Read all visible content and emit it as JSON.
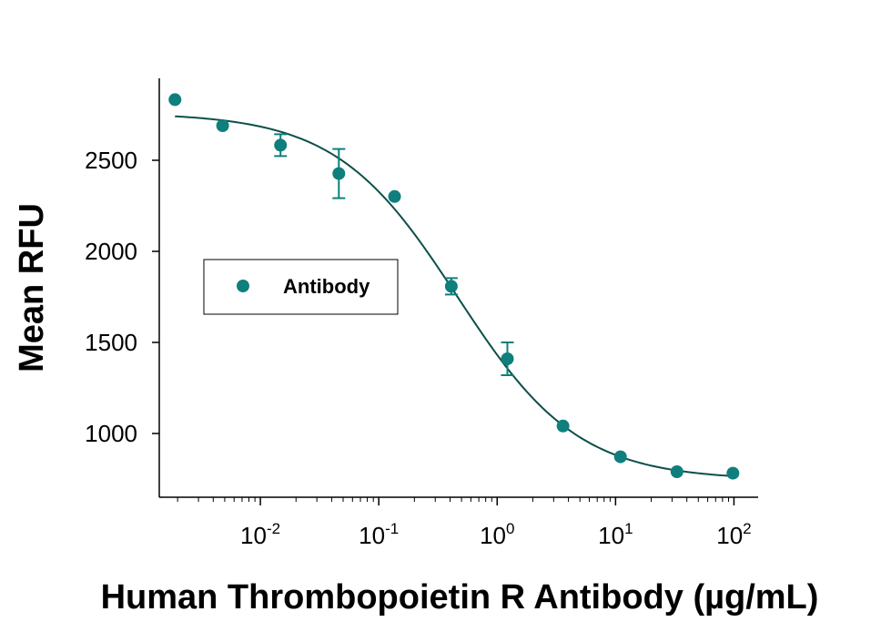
{
  "chart_data": {
    "type": "scatter",
    "title": "",
    "xlabel": "Human Thrombopoietin R Antibody (µg/mL)",
    "ylabel": "Mean RFU",
    "xscale": "log",
    "xlim": [
      0.0014,
      160
    ],
    "ylim": [
      650,
      2950
    ],
    "x_ticks": [
      {
        "value": 0.01,
        "base": "10",
        "exp": "-2"
      },
      {
        "value": 0.1,
        "base": "10",
        "exp": "-1"
      },
      {
        "value": 1,
        "base": "10",
        "exp": "0"
      },
      {
        "value": 10,
        "base": "10",
        "exp": "1"
      },
      {
        "value": 100,
        "base": "10",
        "exp": "2"
      }
    ],
    "y_ticks": [
      1000,
      1500,
      2000,
      2500
    ],
    "legend": {
      "label": "Antibody",
      "position": "center-left"
    },
    "color": "#0e7f7c",
    "curve_color": "#0b4f49",
    "series": [
      {
        "name": "Antibody",
        "points": [
          {
            "x": 0.0019,
            "y": 2833,
            "err": 0
          },
          {
            "x": 0.0048,
            "y": 2690,
            "err": 0
          },
          {
            "x": 0.0148,
            "y": 2583,
            "err": 60
          },
          {
            "x": 0.046,
            "y": 2427,
            "err": 135
          },
          {
            "x": 0.136,
            "y": 2301,
            "err": 0
          },
          {
            "x": 0.41,
            "y": 1808,
            "err": 45
          },
          {
            "x": 1.22,
            "y": 1410,
            "err": 90
          },
          {
            "x": 3.6,
            "y": 1041,
            "err": 0
          },
          {
            "x": 11,
            "y": 872,
            "err": 0
          },
          {
            "x": 33,
            "y": 790,
            "err": 0
          },
          {
            "x": 98,
            "y": 782,
            "err": 0
          }
        ],
        "fit": {
          "model": "4PL",
          "top": 2760,
          "bottom": 745,
          "ec50": 0.46,
          "hill": 0.85
        }
      }
    ]
  }
}
